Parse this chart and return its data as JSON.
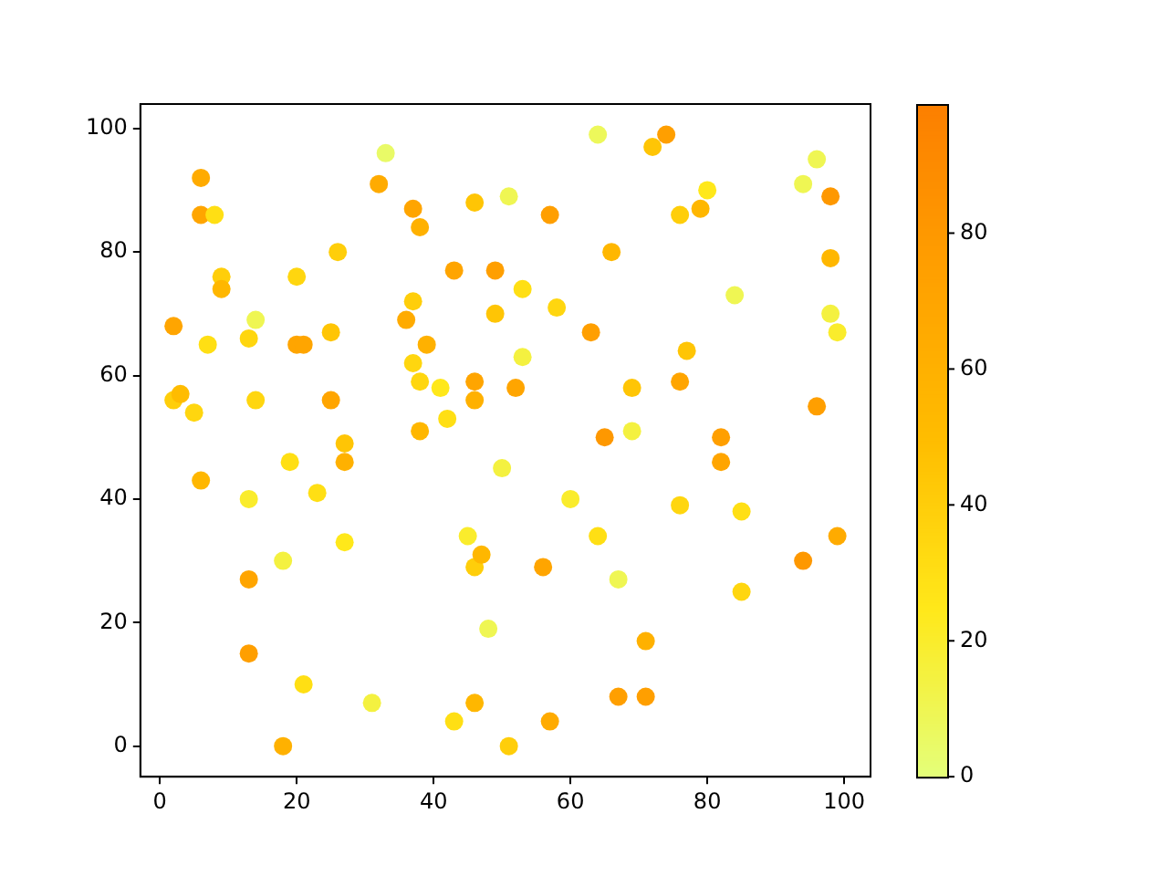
{
  "chart_data": {
    "type": "scatter",
    "x": [
      2,
      2,
      3,
      5,
      6,
      6,
      8,
      7,
      9,
      9,
      6,
      13,
      14,
      14,
      13,
      13,
      13,
      18,
      19,
      20,
      20,
      21,
      21,
      18,
      23,
      25,
      25,
      26,
      27,
      27,
      27,
      31,
      32,
      33,
      36,
      37,
      37,
      38,
      37,
      38,
      39,
      38,
      41,
      42,
      43,
      43,
      45,
      46,
      46,
      46,
      46,
      46,
      47,
      48,
      49,
      49,
      50,
      51,
      51,
      52,
      53,
      53,
      56,
      57,
      57,
      58,
      60,
      63,
      64,
      64,
      65,
      66,
      67,
      67,
      69,
      69,
      71,
      71,
      72,
      74,
      76,
      76,
      76,
      77,
      79,
      80,
      82,
      82,
      84,
      85,
      85,
      94,
      94,
      96,
      96,
      98,
      98,
      98,
      99,
      99
    ],
    "values": [
      68,
      56,
      57,
      54,
      92,
      86,
      86,
      65,
      76,
      74,
      43,
      66,
      69,
      56,
      40,
      27,
      15,
      30,
      46,
      76,
      65,
      65,
      10,
      0,
      41,
      67,
      56,
      80,
      49,
      46,
      33,
      7,
      91,
      96,
      69,
      87,
      72,
      84,
      62,
      59,
      65,
      51,
      58,
      53,
      77,
      4,
      34,
      88,
      59,
      56,
      29,
      7,
      31,
      19,
      77,
      70,
      45,
      89,
      0,
      58,
      74,
      63,
      29,
      86,
      4,
      71,
      40,
      67,
      99,
      34,
      50,
      80,
      27,
      8,
      58,
      51,
      17,
      8,
      97,
      99,
      86,
      59,
      39,
      64,
      87,
      90,
      50,
      46,
      73,
      38,
      25,
      91,
      30,
      95,
      55,
      89,
      79,
      70,
      67,
      34
    ],
    "cvalues": [
      70,
      40,
      50,
      35,
      65,
      70,
      30,
      30,
      40,
      55,
      55,
      35,
      10,
      35,
      20,
      70,
      75,
      15,
      30,
      35,
      70,
      70,
      30,
      60,
      30,
      45,
      70,
      40,
      45,
      60,
      25,
      15,
      65,
      5,
      65,
      70,
      40,
      60,
      35,
      35,
      60,
      55,
      25,
      30,
      70,
      30,
      20,
      45,
      70,
      60,
      40,
      55,
      55,
      10,
      75,
      45,
      15,
      10,
      40,
      70,
      30,
      15,
      70,
      75,
      65,
      35,
      20,
      75,
      8,
      30,
      80,
      55,
      10,
      75,
      45,
      15,
      60,
      75,
      45,
      75,
      40,
      70,
      35,
      45,
      55,
      25,
      75,
      70,
      10,
      30,
      35,
      10,
      80,
      10,
      75,
      80,
      55,
      15,
      20,
      65
    ],
    "xlim": [
      -2.85,
      103.85
    ],
    "ylim": [
      -4.95,
      103.95
    ],
    "xticks": [
      0,
      20,
      40,
      60,
      80,
      100
    ],
    "yticks": [
      0,
      20,
      40,
      60,
      80,
      100
    ],
    "clim": [
      0,
      99
    ],
    "cticks": [
      0,
      20,
      40,
      60,
      80
    ],
    "marker": "circle",
    "grid": false,
    "legend": false
  }
}
